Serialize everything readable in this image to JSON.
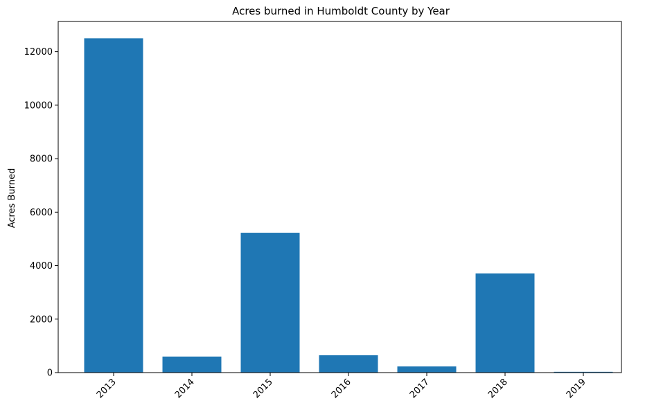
{
  "chart_data": {
    "type": "bar",
    "title": "Acres burned in Humboldt County by Year",
    "xlabel": "",
    "ylabel": "Acres Burned",
    "categories": [
      "2013",
      "2014",
      "2015",
      "2016",
      "2017",
      "2018",
      "2019"
    ],
    "values": [
      12500,
      600,
      5230,
      650,
      230,
      3710,
      30
    ],
    "ylim": [
      0,
      13130
    ],
    "yticks": [
      0,
      2000,
      4000,
      6000,
      8000,
      10000,
      12000
    ],
    "bar_color": "#1f77b4",
    "grid": false,
    "legend": "none"
  }
}
